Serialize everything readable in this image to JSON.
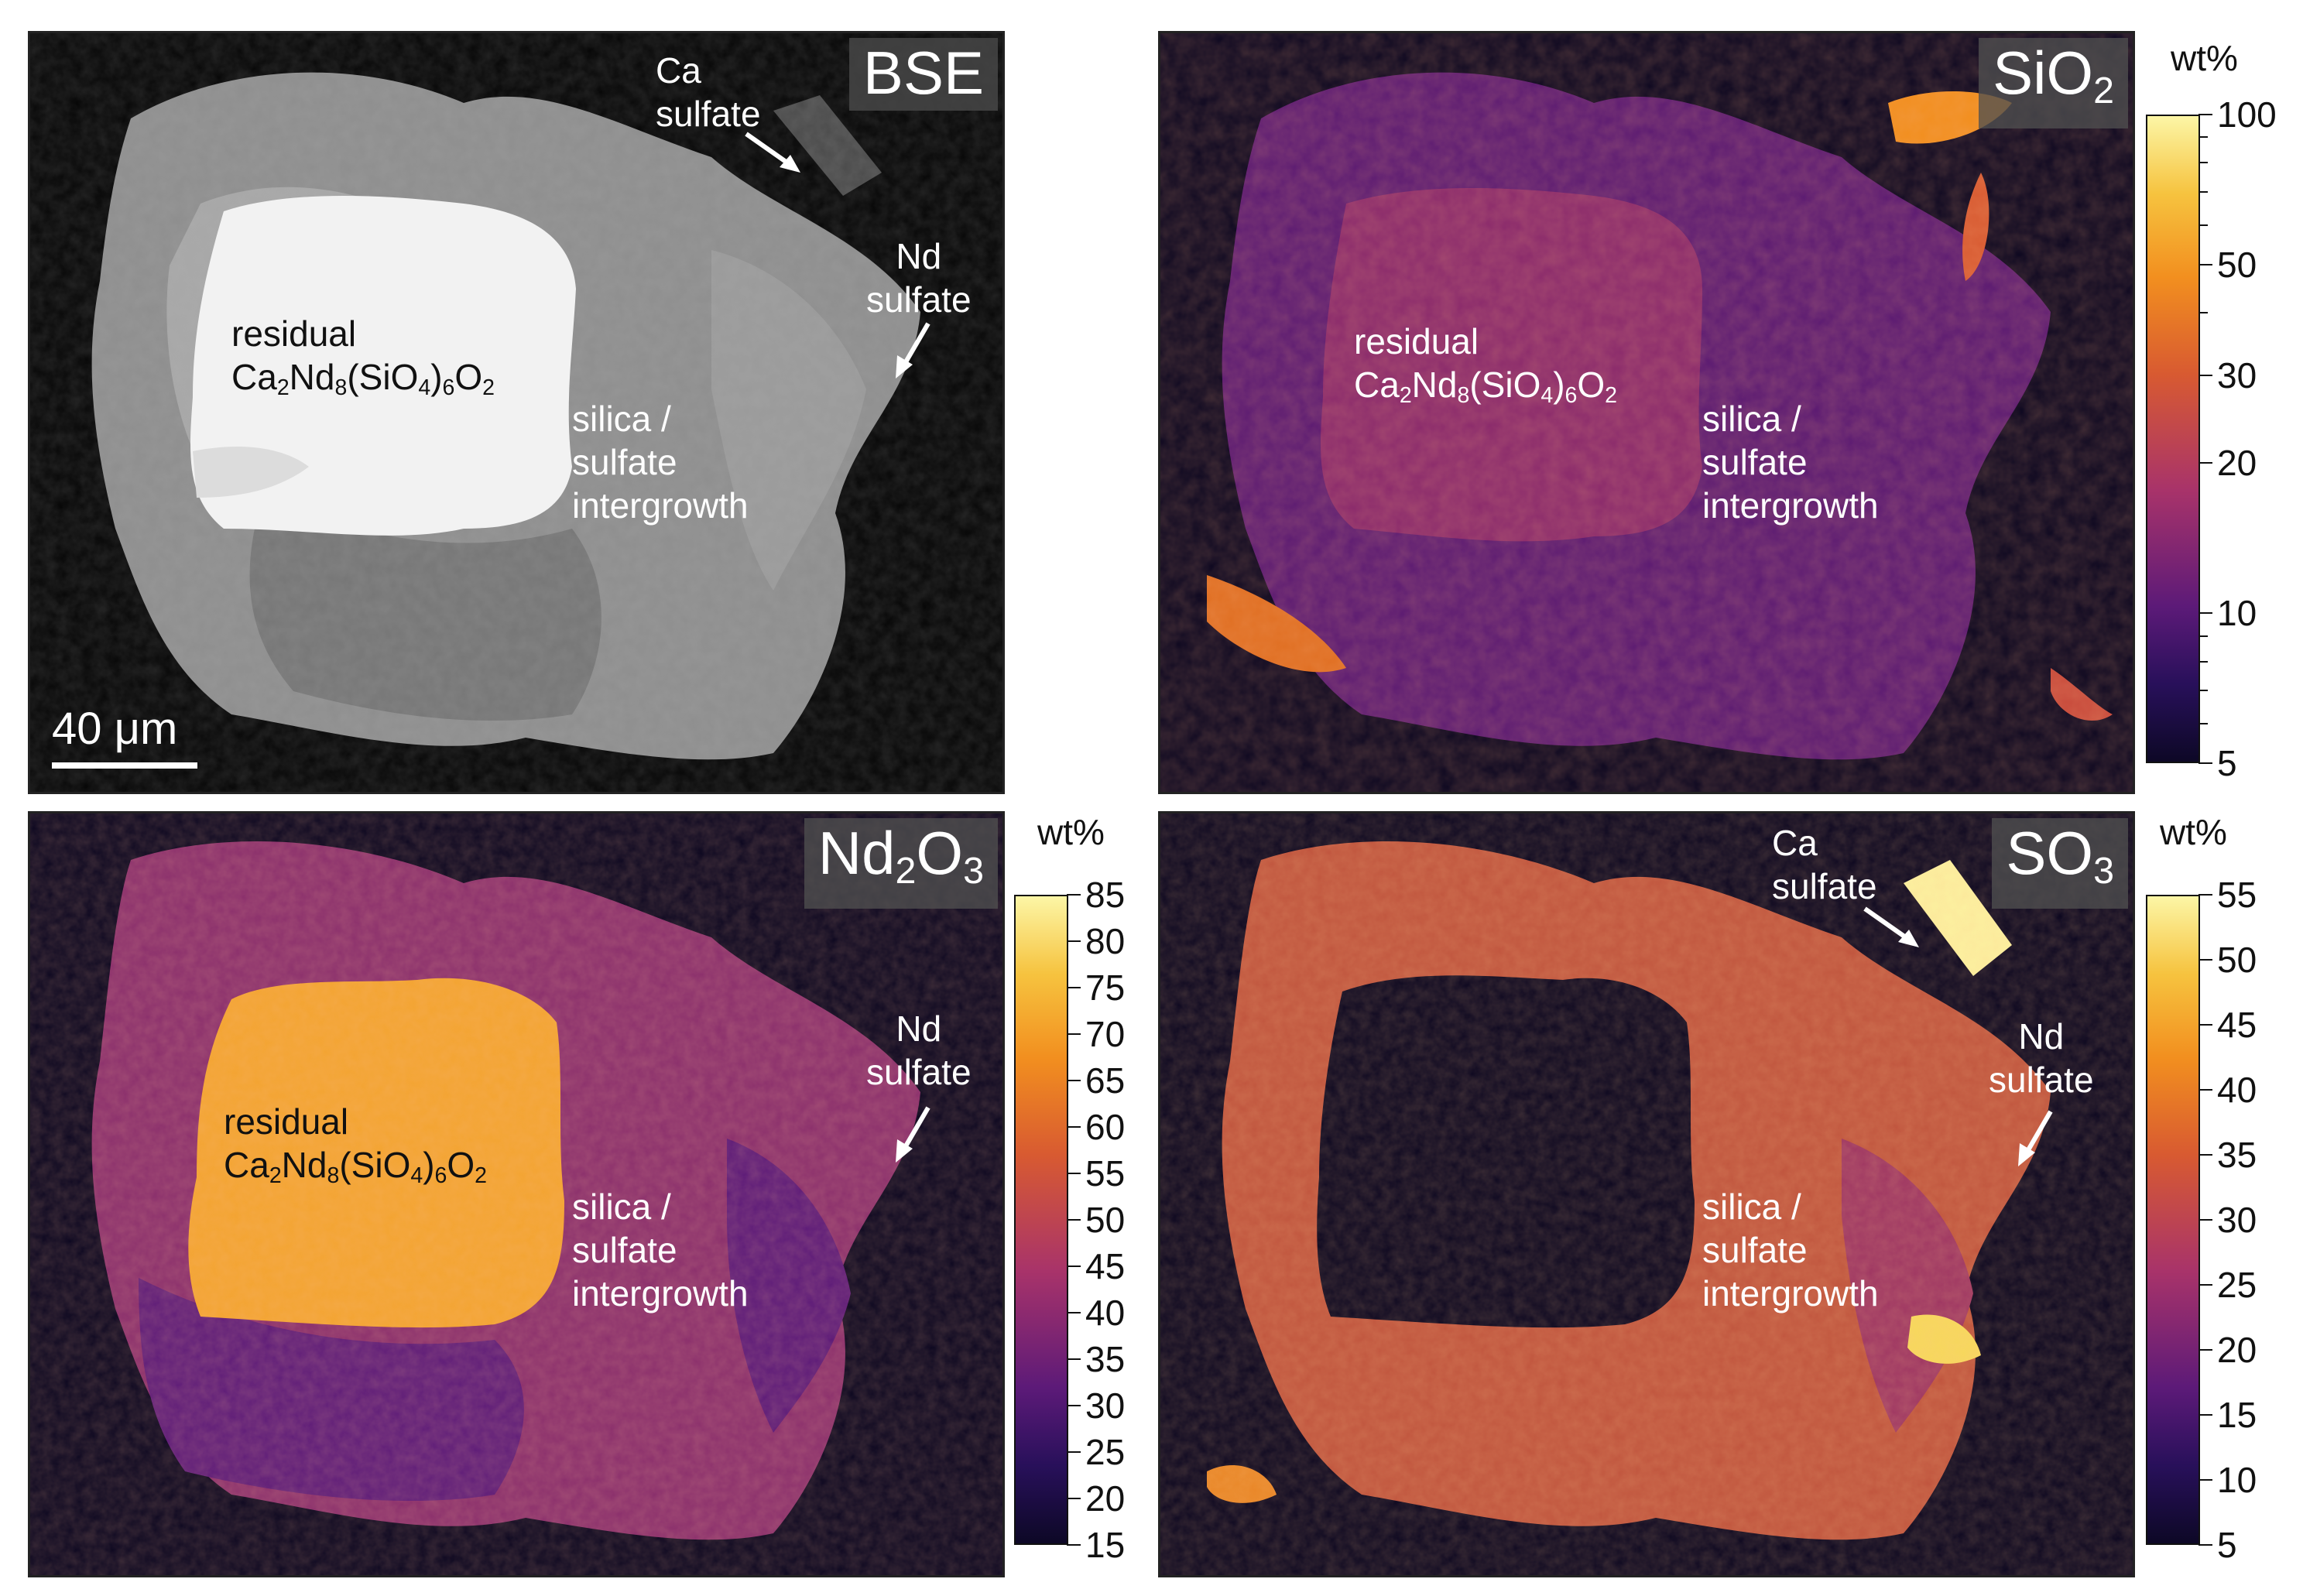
{
  "panels": {
    "bse": {
      "tag": "BSE",
      "residual_1": "residual",
      "residual_2": "Ca2Nd8(SiO4)6O2",
      "silica_1": "silica /",
      "silica_2": "sulfate",
      "silica_3": "intergrowth",
      "ca_1": "Ca",
      "ca_2": "sulfate",
      "nd_1": "Nd",
      "nd_2": "sulfate",
      "scale_label": "40 μm"
    },
    "sio2": {
      "tag": "SiO2",
      "residual_1": "residual",
      "residual_2": "Ca2Nd8(SiO4)6O2",
      "silica_1": "silica /",
      "silica_2": "sulfate",
      "silica_3": "intergrowth",
      "colorbar": {
        "unit": "wt%",
        "scale": "log",
        "range": [
          5,
          100
        ],
        "labels": [
          "100",
          "50",
          "30",
          "20",
          "10",
          "5"
        ]
      }
    },
    "nd2o3": {
      "tag": "Nd2O3",
      "residual_1": "residual",
      "residual_2": "Ca2Nd8(SiO4)6O2",
      "silica_1": "silica /",
      "silica_2": "sulfate",
      "silica_3": "intergrowth",
      "nd_1": "Nd",
      "nd_2": "sulfate",
      "colorbar": {
        "unit": "wt%",
        "scale": "linear",
        "range": [
          15,
          85
        ],
        "labels": [
          "85",
          "80",
          "75",
          "70",
          "65",
          "60",
          "55",
          "50",
          "45",
          "40",
          "35",
          "30",
          "25",
          "20",
          "15"
        ]
      }
    },
    "so3": {
      "tag": "SO3",
      "ca_1": "Ca",
      "ca_2": "sulfate",
      "nd_1": "Nd",
      "nd_2": "sulfate",
      "silica_1": "silica /",
      "silica_2": "sulfate",
      "silica_3": "intergrowth",
      "colorbar": {
        "unit": "wt%",
        "scale": "linear",
        "range": [
          5,
          55
        ],
        "labels": [
          "55",
          "50",
          "45",
          "40",
          "35",
          "30",
          "25",
          "20",
          "15",
          "10",
          "5"
        ]
      }
    }
  },
  "colors": {
    "inferno_dark": "#0d0826",
    "inferno_purple": "#5c1a78",
    "inferno_magenta": "#a8336a",
    "inferno_orange": "#e9741e",
    "inferno_yellow": "#fcf6a6"
  }
}
